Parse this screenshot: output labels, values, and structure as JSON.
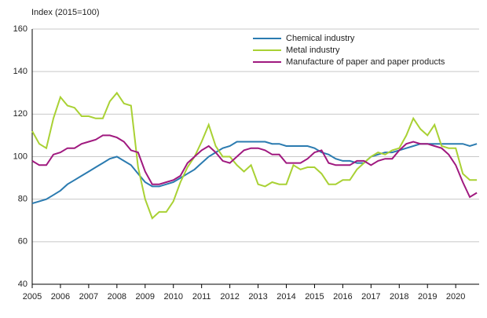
{
  "chart_data": {
    "type": "line",
    "y_label": "Index (2015=100)",
    "x": [
      2005,
      2005.25,
      2005.5,
      2005.75,
      2006,
      2006.25,
      2006.5,
      2006.75,
      2007,
      2007.25,
      2007.5,
      2007.75,
      2008,
      2008.25,
      2008.5,
      2008.75,
      2009,
      2009.25,
      2009.5,
      2009.75,
      2010,
      2010.25,
      2010.5,
      2010.75,
      2011,
      2011.25,
      2011.5,
      2011.75,
      2012,
      2012.25,
      2012.5,
      2012.75,
      2013,
      2013.25,
      2013.5,
      2013.75,
      2014,
      2014.25,
      2014.5,
      2014.75,
      2015,
      2015.25,
      2015.5,
      2015.75,
      2016,
      2016.25,
      2016.5,
      2016.75,
      2017,
      2017.25,
      2017.5,
      2017.75,
      2018,
      2018.25,
      2018.5,
      2018.75,
      2019,
      2019.25,
      2019.5,
      2019.75,
      2020,
      2020.25,
      2020.5,
      2020.75
    ],
    "series": [
      {
        "name": "Chemical industry",
        "color": "#2b7bb0",
        "values": [
          78,
          79,
          80,
          82,
          84,
          87,
          89,
          91,
          93,
          95,
          97,
          99,
          100,
          98,
          96,
          92,
          88,
          86,
          86,
          87,
          88,
          90,
          92,
          94,
          97,
          100,
          102,
          104,
          105,
          107,
          107,
          107,
          107,
          107,
          106,
          106,
          105,
          105,
          105,
          105,
          104,
          102,
          101,
          99,
          98,
          98,
          97,
          97,
          100,
          101,
          102,
          102,
          103,
          104,
          105,
          106,
          106,
          106,
          106,
          106,
          106,
          106,
          105,
          106
        ]
      },
      {
        "name": "Metal industry",
        "color": "#a9d134",
        "values": [
          112,
          106,
          104,
          118,
          128,
          124,
          123,
          119,
          119,
          118,
          118,
          126,
          130,
          125,
          124,
          95,
          80,
          71,
          74,
          74,
          79,
          88,
          95,
          100,
          107,
          115,
          105,
          100,
          100,
          96,
          93,
          96,
          87,
          86,
          88,
          87,
          87,
          96,
          94,
          95,
          95,
          92,
          87,
          87,
          89,
          89,
          94,
          97,
          100,
          102,
          101,
          103,
          104,
          110,
          118,
          113,
          110,
          115,
          105,
          104,
          104,
          92,
          89,
          89
        ]
      },
      {
        "name": "Manufacture of paper and paper products",
        "color": "#a0197f",
        "values": [
          98,
          96,
          96,
          101,
          102,
          104,
          104,
          106,
          107,
          108,
          110,
          110,
          109,
          107,
          103,
          102,
          93,
          87,
          87,
          88,
          89,
          91,
          97,
          100,
          103,
          105,
          102,
          98,
          97,
          100,
          103,
          104,
          104,
          103,
          101,
          101,
          97,
          97,
          97,
          99,
          102,
          103,
          97,
          96,
          96,
          96,
          98,
          98,
          96,
          98,
          99,
          99,
          103,
          106,
          107,
          106,
          106,
          105,
          104,
          101,
          96,
          88,
          81,
          83
        ]
      }
    ],
    "xlim": [
      2005,
      2020.83
    ],
    "xticks": [
      2005,
      2006,
      2007,
      2008,
      2009,
      2010,
      2011,
      2012,
      2013,
      2014,
      2015,
      2016,
      2017,
      2018,
      2019,
      2020
    ],
    "ylim": [
      40,
      160
    ],
    "yticks": [
      40,
      60,
      80,
      100,
      120,
      140,
      160
    ],
    "grid": true
  }
}
